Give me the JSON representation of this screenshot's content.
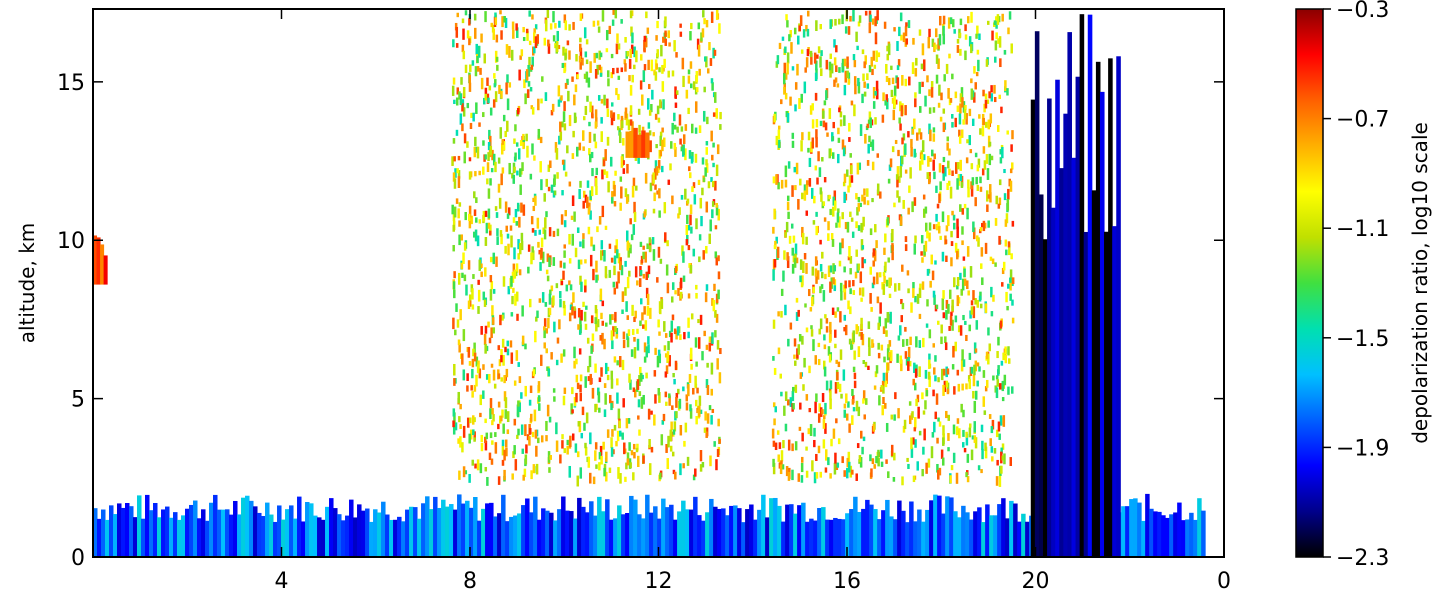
{
  "chart_data": {
    "type": "heatmap",
    "title": "",
    "xlabel": "",
    "ylabel": "altitude, km",
    "x_ticks": [
      "4",
      "8",
      "12",
      "16",
      "20",
      "0"
    ],
    "x_range_hours": [
      0,
      24
    ],
    "y_ticks": [
      0,
      5,
      10,
      15
    ],
    "ylim": [
      0,
      17.3
    ],
    "grid": false,
    "colorbar": {
      "label": "depolarization ratio, log10 scale",
      "ticks": [
        -0.3,
        -0.7,
        -1.1,
        -1.5,
        -1.9,
        -2.3
      ],
      "range": [
        -2.3,
        -0.3
      ],
      "colormap": [
        "#000000",
        "#00008b",
        "#0000ff",
        "#0060ff",
        "#00c0ff",
        "#00e0b0",
        "#40e040",
        "#c0e000",
        "#ffff00",
        "#ffb000",
        "#ff6000",
        "#ff0000",
        "#8b0000"
      ]
    },
    "features": [
      {
        "description": "near-surface aerosol layer",
        "x_start": 0,
        "x_end": 23.6,
        "alt_top": 2.0,
        "value": -1.8
      },
      {
        "description": "high-depolarization column",
        "x_start": 19.9,
        "x_end": 21.8,
        "alt_top": 17.3,
        "value": -2.2
      },
      {
        "description": "sparse noisy returns",
        "x_start": 7.6,
        "x_end": 13.3,
        "alt_top": 17.3,
        "value": -1.0
      },
      {
        "description": "sparse noisy returns",
        "x_start": 14.4,
        "x_end": 19.5,
        "alt_top": 17.3,
        "value": -1.0
      },
      {
        "description": "cirrus cloud",
        "x_start": 11.3,
        "x_end": 11.8,
        "alt_bottom": 12.6,
        "alt_top": 13.8,
        "value": -0.6
      },
      {
        "description": "cirrus cloud",
        "x_start": 0.0,
        "x_end": 0.3,
        "alt_bottom": 8.6,
        "alt_top": 10.2,
        "value": -0.6
      }
    ]
  }
}
